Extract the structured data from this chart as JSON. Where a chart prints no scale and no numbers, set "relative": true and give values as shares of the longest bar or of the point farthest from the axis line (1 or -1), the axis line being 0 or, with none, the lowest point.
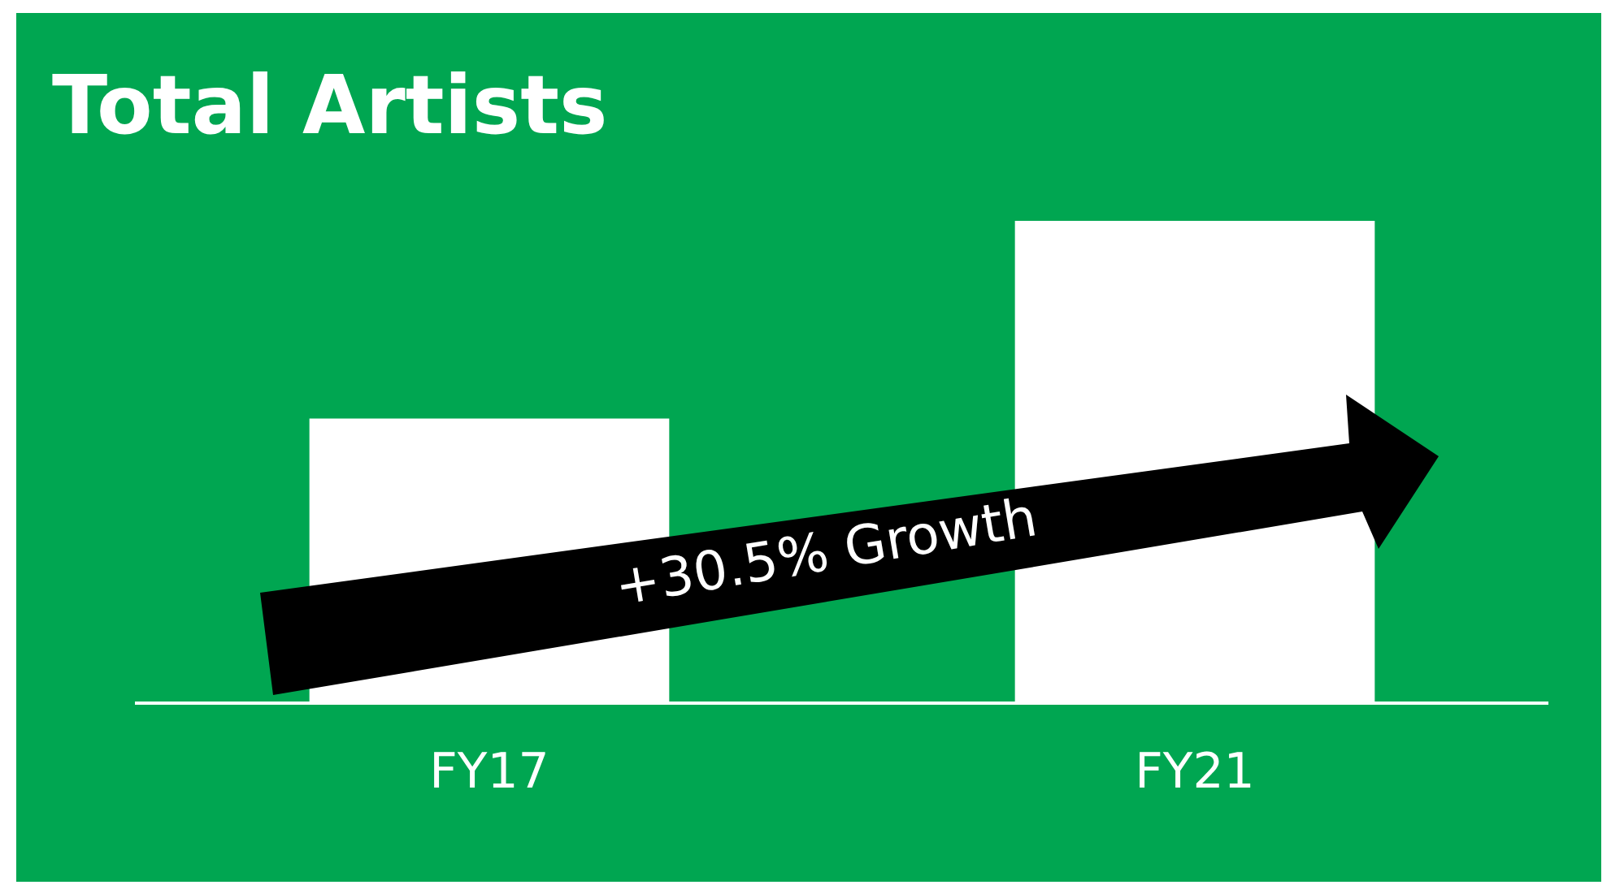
{
  "chart_data": {
    "type": "bar",
    "title": "Total Artists",
    "categories": [
      "FY17",
      "FY21"
    ],
    "values": [
      0.59,
      1
    ],
    "color": "#ffffff",
    "relative": true,
    "annotations": [
      "+30.5% Growth"
    ]
  }
}
